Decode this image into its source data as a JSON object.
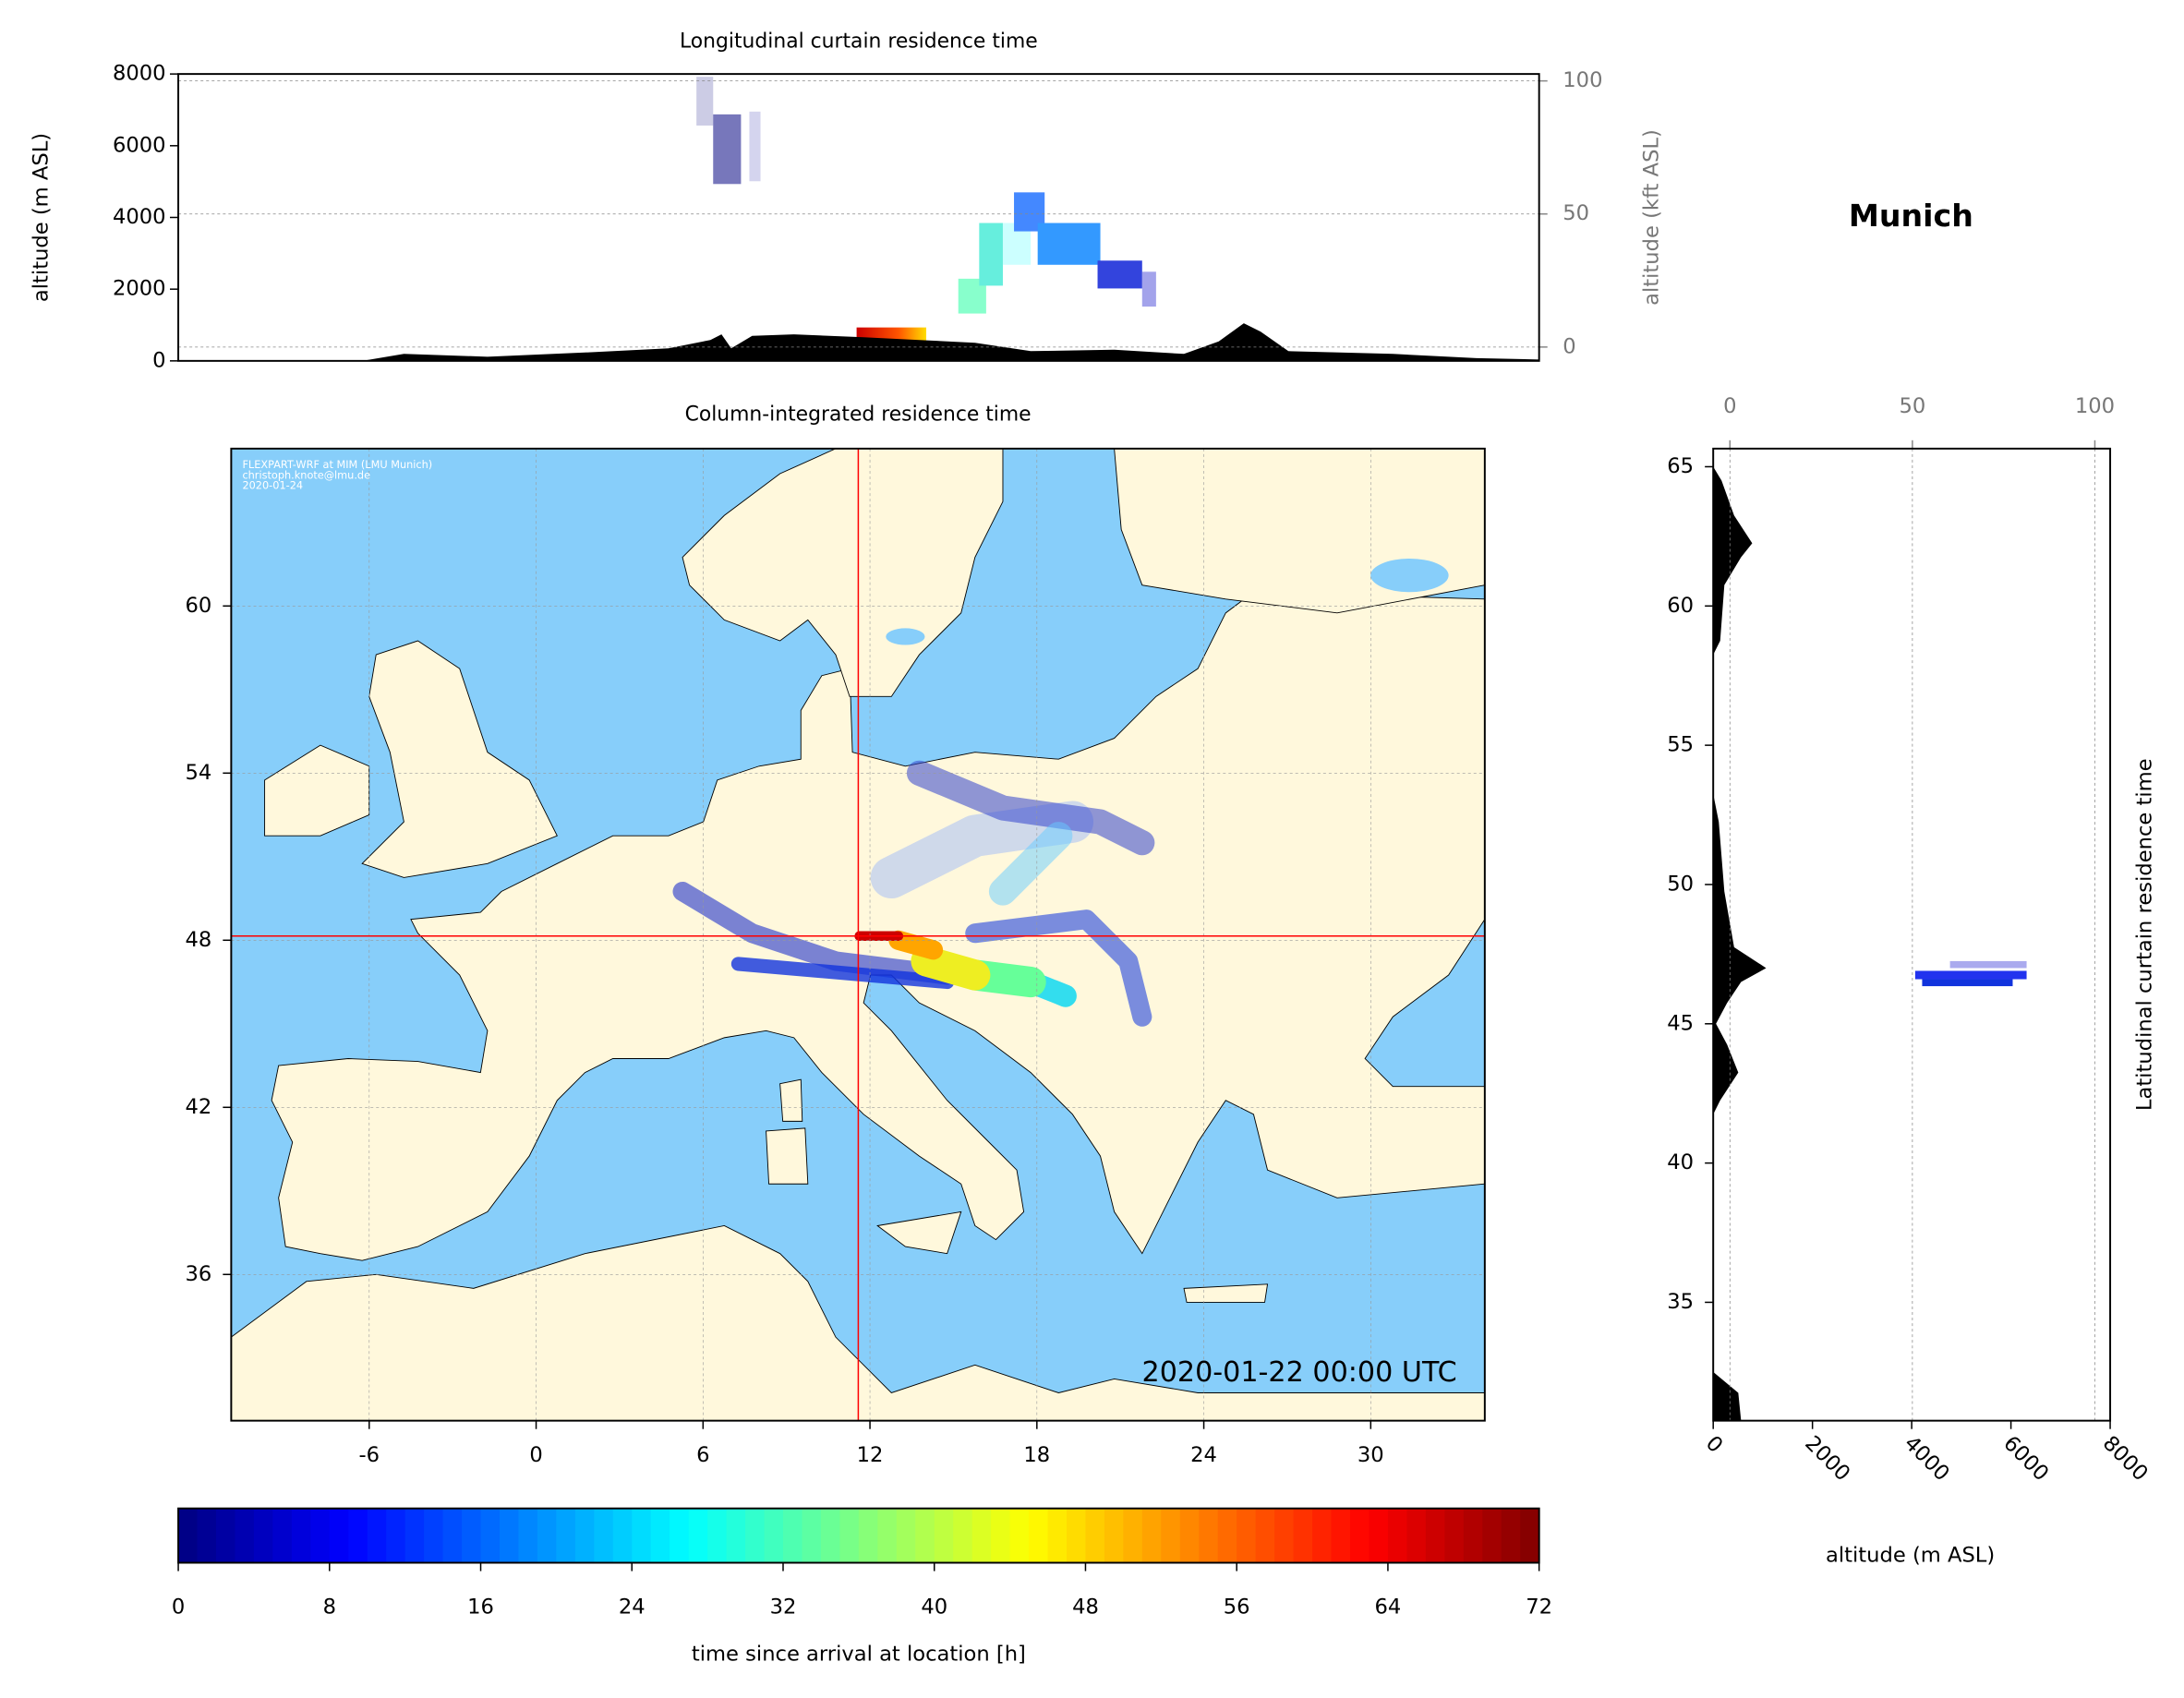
{
  "figure_title": "Munich",
  "chart_data": [
    {
      "type": "area",
      "title": "Longitudinal curtain residence time",
      "y_label": "altitude (m ASL)",
      "ylim": [
        0,
        8000
      ],
      "yticks": [
        0,
        2000,
        4000,
        6000,
        8000
      ],
      "y2_label": "altitude (kft ASL)",
      "y2lim": [
        -5.2,
        102.6
      ],
      "y2ticks": [
        0,
        50,
        100
      ],
      "grid": true
    },
    {
      "type": "map",
      "title": "Column-integrated residence time",
      "xlim": [
        -10.96,
        34.1
      ],
      "xticks": [
        -6,
        0,
        6,
        12,
        18,
        24,
        30
      ],
      "ylim": [
        30.75,
        65.65
      ],
      "yticks": [
        36,
        42,
        48,
        54,
        60
      ],
      "grid": true,
      "crosshair": {
        "lon": 11.58,
        "lat": 48.15,
        "color": "#ff0000"
      },
      "annotations": [
        "FLEXPART-WRF at MIM (LMU Munich)",
        "christoph.knote@lmu.de",
        "2020-01-24"
      ],
      "timestamp": "2020-01-22 00:00 UTC"
    },
    {
      "type": "profile",
      "title": "Latitudinal curtain residence time",
      "x_label": "altitude (m ASL)",
      "xlim": [
        0,
        8000
      ],
      "xticks": [
        0,
        2000,
        4000,
        6000,
        8000
      ],
      "x2lim": [
        -4.58,
        104.2
      ],
      "x2ticks": [
        0,
        50,
        100
      ],
      "ylim": [
        30.75,
        65.65
      ],
      "yticks": [
        35,
        40,
        45,
        50,
        55,
        60,
        65
      ],
      "grid": true
    },
    {
      "type": "colorbar",
      "label": "time since arrival at location [h]",
      "xlim": [
        0,
        72
      ],
      "xticks": [
        0,
        8,
        16,
        24,
        32,
        40,
        48,
        56,
        64,
        72
      ],
      "colormap": "jet"
    }
  ]
}
